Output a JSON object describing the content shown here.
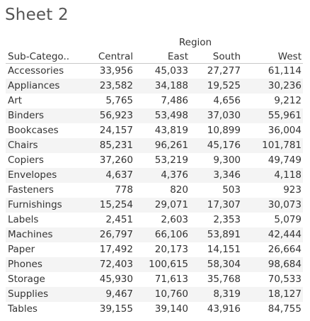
{
  "sheet": {
    "title": "Sheet 2"
  },
  "table": {
    "column_group_header": "Region",
    "row_header": "Sub-Catego..",
    "columns": [
      "Central",
      "East",
      "South",
      "West"
    ],
    "rows": [
      {
        "name": "Accessories",
        "values": [
          "33,956",
          "45,033",
          "27,277",
          "61,114"
        ]
      },
      {
        "name": "Appliances",
        "values": [
          "23,582",
          "34,188",
          "19,525",
          "30,236"
        ]
      },
      {
        "name": "Art",
        "values": [
          "5,765",
          "7,486",
          "4,656",
          "9,212"
        ]
      },
      {
        "name": "Binders",
        "values": [
          "56,923",
          "53,498",
          "37,030",
          "55,961"
        ]
      },
      {
        "name": "Bookcases",
        "values": [
          "24,157",
          "43,819",
          "10,899",
          "36,004"
        ]
      },
      {
        "name": "Chairs",
        "values": [
          "85,231",
          "96,261",
          "45,176",
          "101,781"
        ]
      },
      {
        "name": "Copiers",
        "values": [
          "37,260",
          "53,219",
          "9,300",
          "49,749"
        ]
      },
      {
        "name": "Envelopes",
        "values": [
          "4,637",
          "4,376",
          "3,346",
          "4,118"
        ]
      },
      {
        "name": "Fasteners",
        "values": [
          "778",
          "820",
          "503",
          "923"
        ]
      },
      {
        "name": "Furnishings",
        "values": [
          "15,254",
          "29,071",
          "17,307",
          "30,073"
        ]
      },
      {
        "name": "Labels",
        "values": [
          "2,451",
          "2,603",
          "2,353",
          "5,079"
        ]
      },
      {
        "name": "Machines",
        "values": [
          "26,797",
          "66,106",
          "53,891",
          "42,444"
        ]
      },
      {
        "name": "Paper",
        "values": [
          "17,492",
          "20,173",
          "14,151",
          "26,664"
        ]
      },
      {
        "name": "Phones",
        "values": [
          "72,403",
          "100,615",
          "58,304",
          "98,684"
        ]
      },
      {
        "name": "Storage",
        "values": [
          "45,930",
          "71,613",
          "35,768",
          "70,533"
        ]
      },
      {
        "name": "Supplies",
        "values": [
          "9,467",
          "10,760",
          "8,319",
          "18,127"
        ]
      },
      {
        "name": "Tables",
        "values": [
          "39,155",
          "39,140",
          "43,916",
          "84,755"
        ]
      }
    ]
  },
  "colors": {
    "text": "#333333",
    "title": "#555555",
    "band": "#f4f4f4",
    "divider": "#c8c8c8"
  }
}
